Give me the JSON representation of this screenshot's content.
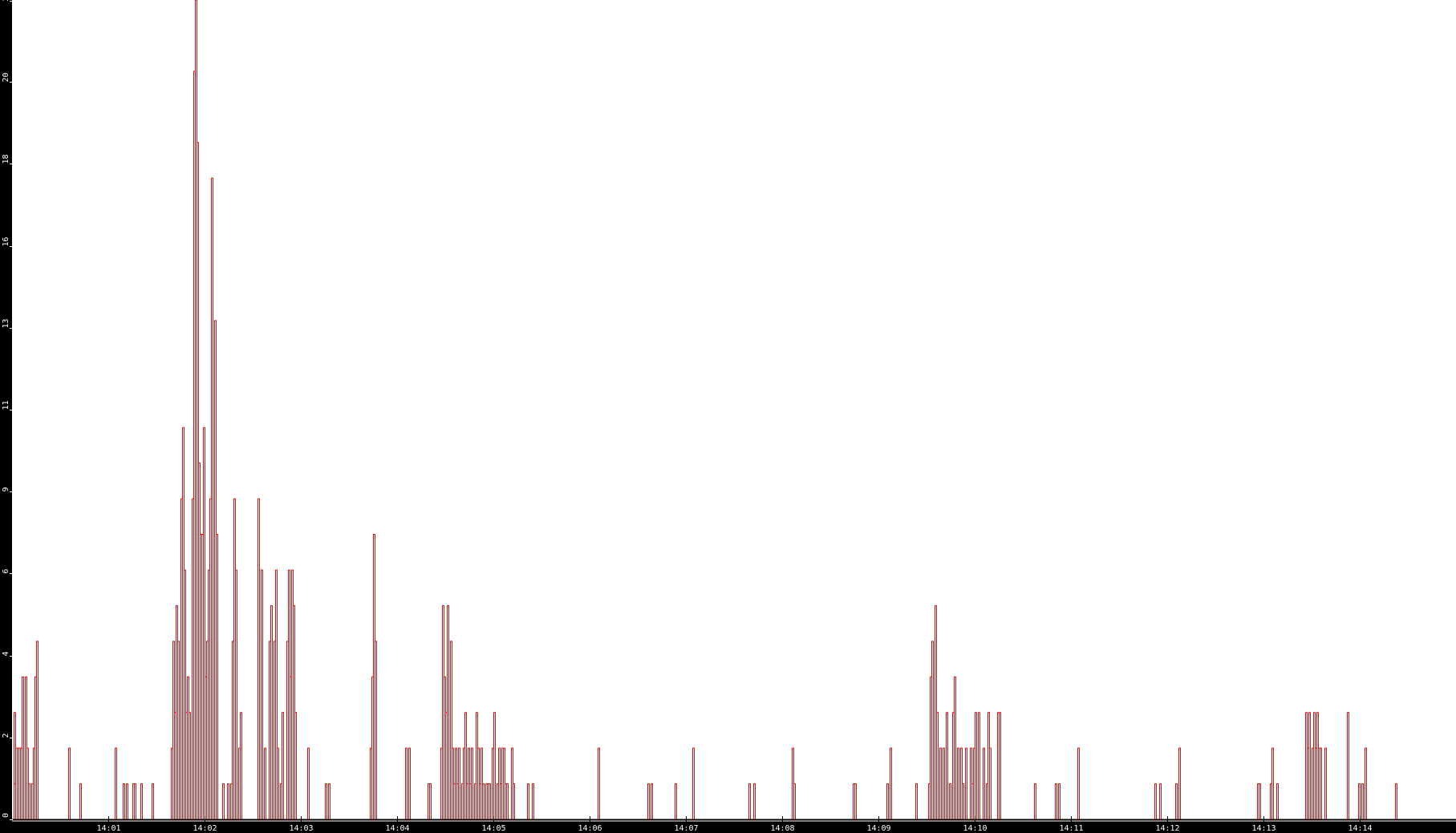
{
  "chart_data": {
    "type": "bar",
    "title": "",
    "xlabel": "",
    "ylabel": "",
    "xlim": [
      "14:00:00",
      "14:15:00"
    ],
    "ylim": [
      0,
      23
    ],
    "grid": false,
    "legend": "none",
    "colors": {
      "series": "#ff0000",
      "background": "#ffffff",
      "axis_background": "#000000",
      "axis_text": "#ffffff"
    },
    "y_ticks": {
      "values": [
        0,
        2.3,
        4.6,
        6.9,
        9.2,
        11.5,
        13.8,
        16.1,
        18.4,
        20.7,
        23
      ],
      "labels": [
        "0",
        "2",
        "4",
        "6",
        "9",
        "11",
        "13",
        "16",
        "18",
        "20",
        "23"
      ]
    },
    "x_ticks": {
      "values": [
        "14:01:00",
        "14:02:00",
        "14:03:00",
        "14:04:00",
        "14:05:00",
        "14:06:00",
        "14:07:00",
        "14:08:00",
        "14:09:00",
        "14:10:00",
        "14:11:00",
        "14:12:00",
        "14:13:00",
        "14:14:00"
      ],
      "labels": [
        "14:01",
        "14:02",
        "14:03",
        "14:04",
        "14:05",
        "14:06",
        "14:07",
        "14:08",
        "14:09",
        "14:10",
        "14:11",
        "14:12",
        "14:13",
        "14:14"
      ]
    },
    "series": [
      {
        "points": [
          [
            "14:00:01",
            1
          ],
          [
            "14:00:01",
            3
          ],
          [
            "14:00:02",
            2
          ],
          [
            "14:00:03",
            2
          ],
          [
            "14:00:04",
            2
          ],
          [
            "14:00:05",
            2
          ],
          [
            "14:00:06",
            4
          ],
          [
            "14:00:08",
            4
          ],
          [
            "14:00:09",
            2
          ],
          [
            "14:00:10",
            1
          ],
          [
            "14:00:12",
            1
          ],
          [
            "14:00:13",
            2
          ],
          [
            "14:00:14",
            4
          ],
          [
            "14:00:15",
            5
          ],
          [
            "14:00:35",
            2
          ],
          [
            "14:00:42",
            1
          ],
          [
            "14:01:04",
            2
          ],
          [
            "14:01:09",
            1
          ],
          [
            "14:01:11",
            1
          ],
          [
            "14:01:15",
            1
          ],
          [
            "14:01:16",
            1
          ],
          [
            "14:01:20",
            1
          ],
          [
            "14:01:27",
            1
          ],
          [
            "14:01:39",
            2
          ],
          [
            "14:01:40",
            5
          ],
          [
            "14:01:41",
            3
          ],
          [
            "14:01:42",
            6
          ],
          [
            "14:01:43",
            5
          ],
          [
            "14:01:45",
            9
          ],
          [
            "14:01:46",
            11
          ],
          [
            "14:01:47",
            7
          ],
          [
            "14:01:48",
            3
          ],
          [
            "14:01:49",
            4
          ],
          [
            "14:01:50",
            3
          ],
          [
            "14:01:52",
            9
          ],
          [
            "14:01:53",
            21
          ],
          [
            "14:01:54",
            23
          ],
          [
            "14:01:55",
            19
          ],
          [
            "14:01:56",
            10
          ],
          [
            "14:01:57",
            8
          ],
          [
            "14:01:58",
            8
          ],
          [
            "14:01:59",
            11
          ],
          [
            "14:02:00",
            4
          ],
          [
            "14:02:01",
            5
          ],
          [
            "14:02:02",
            7
          ],
          [
            "14:02:03",
            9
          ],
          [
            "14:02:04",
            18
          ],
          [
            "14:02:06",
            14
          ],
          [
            "14:02:07",
            8
          ],
          [
            "14:02:11",
            1
          ],
          [
            "14:02:14",
            1
          ],
          [
            "14:02:16",
            1
          ],
          [
            "14:02:17",
            5
          ],
          [
            "14:02:18",
            9
          ],
          [
            "14:02:19",
            7
          ],
          [
            "14:02:21",
            2
          ],
          [
            "14:02:22",
            3
          ],
          [
            "14:02:33",
            9
          ],
          [
            "14:02:35",
            7
          ],
          [
            "14:02:37",
            2
          ],
          [
            "14:02:40",
            5
          ],
          [
            "14:02:41",
            6
          ],
          [
            "14:02:43",
            5
          ],
          [
            "14:02:44",
            7
          ],
          [
            "14:02:45",
            2
          ],
          [
            "14:02:47",
            1
          ],
          [
            "14:02:48",
            3
          ],
          [
            "14:02:51",
            5
          ],
          [
            "14:02:52",
            7
          ],
          [
            "14:02:53",
            4
          ],
          [
            "14:02:54",
            7
          ],
          [
            "14:02:55",
            6
          ],
          [
            "14:02:56",
            3
          ],
          [
            "14:03:04",
            2
          ],
          [
            "14:03:15",
            1
          ],
          [
            "14:03:17",
            1
          ],
          [
            "14:03:43",
            2
          ],
          [
            "14:03:44",
            4
          ],
          [
            "14:03:45",
            8
          ],
          [
            "14:03:46",
            5
          ],
          [
            "14:04:05",
            2
          ],
          [
            "14:04:07",
            2
          ],
          [
            "14:04:19",
            1
          ],
          [
            "14:04:20",
            1
          ],
          [
            "14:04:27",
            2
          ],
          [
            "14:04:28",
            6
          ],
          [
            "14:04:29",
            4
          ],
          [
            "14:04:30",
            3
          ],
          [
            "14:04:31",
            6
          ],
          [
            "14:04:33",
            5
          ],
          [
            "14:04:34",
            2
          ],
          [
            "14:04:35",
            1
          ],
          [
            "14:04:36",
            2
          ],
          [
            "14:04:37",
            1
          ],
          [
            "14:04:38",
            2
          ],
          [
            "14:04:40",
            1
          ],
          [
            "14:04:41",
            2
          ],
          [
            "14:04:42",
            3
          ],
          [
            "14:04:43",
            1
          ],
          [
            "14:04:44",
            2
          ],
          [
            "14:04:45",
            1
          ],
          [
            "14:04:46",
            2
          ],
          [
            "14:04:48",
            1
          ],
          [
            "14:04:49",
            3
          ],
          [
            "14:04:50",
            2
          ],
          [
            "14:04:51",
            1
          ],
          [
            "14:04:52",
            2
          ],
          [
            "14:04:53",
            1
          ],
          [
            "14:04:55",
            1
          ],
          [
            "14:04:56",
            1
          ],
          [
            "14:04:57",
            1
          ],
          [
            "14:04:59",
            2
          ],
          [
            "14:05:00",
            3
          ],
          [
            "14:05:02",
            1
          ],
          [
            "14:05:03",
            2
          ],
          [
            "14:05:04",
            1
          ],
          [
            "14:05:05",
            2
          ],
          [
            "14:05:06",
            2
          ],
          [
            "14:05:07",
            1
          ],
          [
            "14:05:08",
            1
          ],
          [
            "14:05:11",
            2
          ],
          [
            "14:05:12",
            1
          ],
          [
            "14:05:21",
            1
          ],
          [
            "14:05:24",
            1
          ],
          [
            "14:06:05",
            2
          ],
          [
            "14:06:36",
            1
          ],
          [
            "14:06:38",
            1
          ],
          [
            "14:06:53",
            1
          ],
          [
            "14:07:04",
            2
          ],
          [
            "14:07:39",
            1
          ],
          [
            "14:07:42",
            1
          ],
          [
            "14:08:06",
            2
          ],
          [
            "14:08:07",
            1
          ],
          [
            "14:08:44",
            1
          ],
          [
            "14:08:45",
            1
          ],
          [
            "14:09:05",
            1
          ],
          [
            "14:09:07",
            2
          ],
          [
            "14:09:23",
            1
          ],
          [
            "14:09:31",
            1
          ],
          [
            "14:09:32",
            4
          ],
          [
            "14:09:33",
            5
          ],
          [
            "14:09:35",
            6
          ],
          [
            "14:09:36",
            3
          ],
          [
            "14:09:38",
            2
          ],
          [
            "14:09:40",
            2
          ],
          [
            "14:09:42",
            3
          ],
          [
            "14:09:44",
            1
          ],
          [
            "14:09:46",
            3
          ],
          [
            "14:09:47",
            4
          ],
          [
            "14:09:49",
            2
          ],
          [
            "14:09:51",
            2
          ],
          [
            "14:09:52",
            1
          ],
          [
            "14:09:54",
            2
          ],
          [
            "14:09:57",
            2
          ],
          [
            "14:09:58",
            1
          ],
          [
            "14:09:59",
            2
          ],
          [
            "14:10:00",
            3
          ],
          [
            "14:10:02",
            3
          ],
          [
            "14:10:05",
            2
          ],
          [
            "14:10:07",
            1
          ],
          [
            "14:10:08",
            3
          ],
          [
            "14:10:09",
            2
          ],
          [
            "14:10:14",
            3
          ],
          [
            "14:10:15",
            3
          ],
          [
            "14:10:37",
            1
          ],
          [
            "14:10:50",
            1
          ],
          [
            "14:10:52",
            1
          ],
          [
            "14:11:04",
            2
          ],
          [
            "14:11:52",
            1
          ],
          [
            "14:11:55",
            1
          ],
          [
            "14:12:05",
            1
          ],
          [
            "14:12:07",
            2
          ],
          [
            "14:12:56",
            1
          ],
          [
            "14:12:57",
            1
          ],
          [
            "14:13:04",
            1
          ],
          [
            "14:13:05",
            2
          ],
          [
            "14:13:08",
            1
          ],
          [
            "14:13:26",
            3
          ],
          [
            "14:13:27",
            2
          ],
          [
            "14:13:28",
            3
          ],
          [
            "14:13:30",
            2
          ],
          [
            "14:13:31",
            3
          ],
          [
            "14:13:32",
            2
          ],
          [
            "14:13:33",
            3
          ],
          [
            "14:13:34",
            2
          ],
          [
            "14:13:35",
            2
          ],
          [
            "14:13:38",
            2
          ],
          [
            "14:13:52",
            3
          ],
          [
            "14:13:59",
            1
          ],
          [
            "14:14:01",
            1
          ],
          [
            "14:14:03",
            2
          ],
          [
            "14:14:22",
            1
          ]
        ]
      }
    ]
  }
}
